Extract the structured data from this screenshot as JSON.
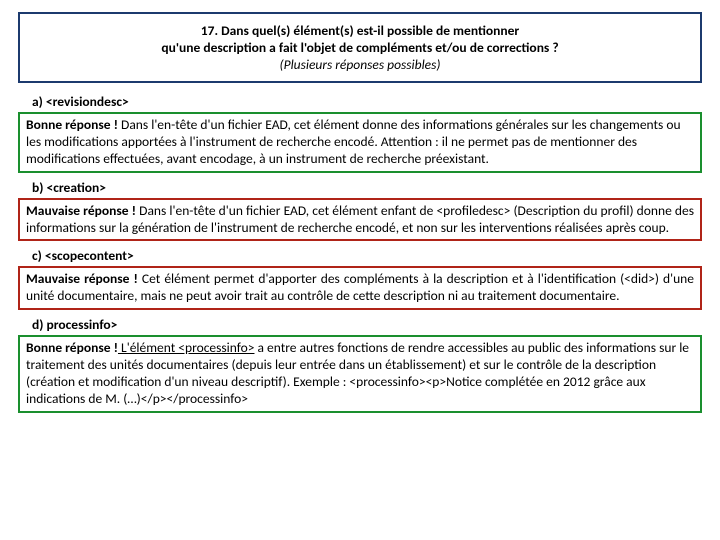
{
  "question": {
    "line1": "17. Dans quel(s) élément(s) est-il possible de mentionner",
    "line2": "qu'une description a fait l'objet de compléments et/ou de corrections ?",
    "line3": "(Plusieurs réponses possibles)"
  },
  "options": {
    "a": {
      "label": "a) <revisiondesc>",
      "lead": "Bonne réponse !",
      "text": " Dans l'en-tête d'un fichier EAD, cet élément donne des informations générales sur les changements ou les modifications apportées à l'instrument de recherche encodé. Attention : il ne permet pas de mentionner des modifications effectuées, avant encodage, à un instrument de recherche préexistant.",
      "correct": true
    },
    "b": {
      "label": "b) <creation>",
      "lead": "Mauvaise réponse !",
      "text": " Dans l'en-tête d'un fichier EAD, cet élément enfant de <profiledesc> (Description du profil) donne des informations sur la génération de l'instrument de recherche encodé, et non sur les interventions réalisées après coup.",
      "correct": false
    },
    "c": {
      "label": "c) <scopecontent>",
      "lead": "Mauvaise réponse !",
      "text": "  Cet élément permet d'apporter des compléments à la description et à l'identification (<did>) d'une unité documentaire, mais ne peut avoir trait au contrôle de cette description ni au traitement documentaire.",
      "correct": false
    },
    "d": {
      "label": "d) processinfo>",
      "lead": "Bonne réponse !",
      "underlined": " L'élément <processinfo>",
      "text": " a entre autres fonctions de rendre accessibles au public des informations sur le traitement des unités documentaires (depuis leur entrée dans un établissement) et sur le contrôle de la description (création et modification d'un niveau descriptif). Exemple : <processinfo><p>Notice complétée en 2012 grâce aux indications de M. (…)</p></processinfo>",
      "correct": true
    }
  },
  "colors": {
    "question_border": "#1c3a6e",
    "good_border": "#1a8f2e",
    "bad_border": "#b02418"
  }
}
